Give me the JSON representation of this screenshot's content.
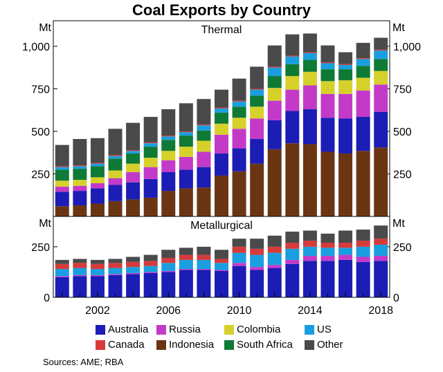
{
  "colors": {
    "Australia": "#1b1db5",
    "Canada": "#d63a3a",
    "Russia": "#c43ac8",
    "Indonesia": "#6b3514",
    "Colombia": "#d6d02a",
    "South Africa": "#0f7a35",
    "US": "#199fdf",
    "Other": "#4a4a4a"
  },
  "legend": [
    "Australia",
    "Russia",
    "Colombia",
    "US",
    "Canada",
    "Indonesia",
    "South Africa",
    "Other"
  ],
  "source": "Sources: AME; RBA",
  "chart_data": {
    "type": "bar",
    "stacked": true,
    "title": "Coal Exports by Country",
    "x": [
      2000,
      2001,
      2002,
      2003,
      2004,
      2005,
      2006,
      2007,
      2008,
      2009,
      2010,
      2011,
      2012,
      2013,
      2014,
      2015,
      2016,
      2017,
      2018
    ],
    "x_ticks": [
      "2002",
      "2006",
      "2010",
      "2014",
      "2018"
    ],
    "stack_order": [
      "Indonesia",
      "Australia",
      "Russia",
      "Colombia",
      "South Africa",
      "US",
      "Canada",
      "Other"
    ],
    "panels": [
      {
        "name": "Thermal",
        "ylabel": "Mt",
        "ylim": [
          0,
          1150
        ],
        "yticks": [
          "250",
          "500",
          "750",
          "1,000"
        ],
        "series": [
          {
            "name": "Indonesia",
            "values": [
              60,
              65,
              75,
              90,
              100,
              110,
              150,
              165,
              170,
              240,
              265,
              310,
              395,
              430,
              425,
              380,
              370,
              385,
              405
            ]
          },
          {
            "name": "Australia",
            "values": [
              85,
              85,
              90,
              95,
              100,
              110,
              110,
              110,
              120,
              130,
              135,
              145,
              170,
              190,
              205,
              200,
              205,
              200,
              210
            ]
          },
          {
            "name": "Russia",
            "values": [
              30,
              30,
              30,
              40,
              60,
              70,
              70,
              75,
              90,
              110,
              115,
              120,
              115,
              125,
              140,
              140,
              145,
              155,
              160
            ]
          },
          {
            "name": "Colombia",
            "values": [
              35,
              35,
              35,
              45,
              50,
              55,
              55,
              60,
              65,
              65,
              65,
              70,
              75,
              80,
              80,
              75,
              80,
              75,
              80
            ]
          },
          {
            "name": "South Africa",
            "values": [
              65,
              65,
              65,
              70,
              60,
              65,
              65,
              65,
              60,
              65,
              65,
              65,
              70,
              70,
              70,
              70,
              65,
              70,
              70
            ]
          },
          {
            "name": "US",
            "values": [
              15,
              15,
              15,
              15,
              15,
              20,
              20,
              20,
              30,
              25,
              30,
              35,
              50,
              45,
              40,
              35,
              25,
              40,
              50
            ]
          },
          {
            "name": "Canada",
            "values": [
              5,
              5,
              5,
              5,
              5,
              5,
              5,
              5,
              5,
              5,
              5,
              5,
              5,
              5,
              5,
              5,
              5,
              5,
              5
            ]
          },
          {
            "name": "Other",
            "values": [
              125,
              155,
              145,
              155,
              160,
              150,
              155,
              165,
              150,
              105,
              130,
              130,
              125,
              125,
              110,
              100,
              70,
              90,
              70
            ]
          }
        ]
      },
      {
        "name": "Metallurgical",
        "ylabel": "Mt",
        "ylim": [
          0,
          400
        ],
        "yticks": [
          "0",
          "250"
        ],
        "series": [
          {
            "name": "Indonesia",
            "values": [
              0,
              0,
              0,
              0,
              0,
              0,
              0,
              0,
              0,
              0,
              0,
              0,
              0,
              0,
              0,
              0,
              0,
              0,
              0
            ]
          },
          {
            "name": "Australia",
            "values": [
              100,
              105,
              105,
              110,
              115,
              120,
              125,
              135,
              135,
              130,
              155,
              135,
              145,
              165,
              180,
              180,
              185,
              175,
              180
            ]
          },
          {
            "name": "Russia",
            "values": [
              5,
              5,
              5,
              5,
              5,
              5,
              5,
              5,
              5,
              5,
              15,
              15,
              15,
              20,
              25,
              25,
              25,
              25,
              25
            ]
          },
          {
            "name": "Colombia",
            "values": [
              0,
              0,
              0,
              0,
              0,
              0,
              0,
              0,
              0,
              0,
              0,
              0,
              0,
              0,
              0,
              0,
              0,
              0,
              0
            ]
          },
          {
            "name": "South Africa",
            "values": [
              0,
              0,
              0,
              0,
              0,
              0,
              0,
              0,
              0,
              0,
              0,
              0,
              0,
              0,
              0,
              0,
              0,
              0,
              0
            ]
          },
          {
            "name": "US",
            "values": [
              35,
              35,
              30,
              30,
              30,
              30,
              40,
              45,
              45,
              35,
              50,
              60,
              60,
              55,
              45,
              40,
              35,
              50,
              55
            ]
          },
          {
            "name": "Canada",
            "values": [
              25,
              25,
              25,
              25,
              25,
              25,
              25,
              25,
              25,
              20,
              30,
              30,
              30,
              30,
              30,
              25,
              25,
              30,
              30
            ]
          },
          {
            "name": "Other",
            "values": [
              20,
              20,
              20,
              20,
              25,
              30,
              40,
              35,
              40,
              45,
              40,
              50,
              55,
              55,
              50,
              45,
              60,
              55,
              65
            ]
          }
        ]
      }
    ]
  }
}
